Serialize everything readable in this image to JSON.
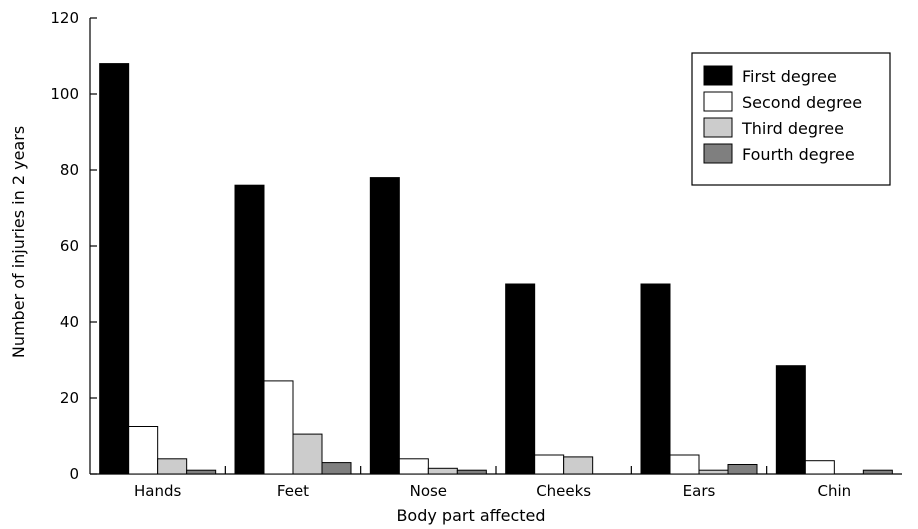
{
  "chart_data": {
    "type": "bar",
    "xlabel": "Body part affected",
    "ylabel": "Number of injuries in 2 years",
    "ylim": [
      0,
      120
    ],
    "yticks": [
      0,
      20,
      40,
      60,
      80,
      100,
      120
    ],
    "categories": [
      "Hands",
      "Feet",
      "Nose",
      "Cheeks",
      "Ears",
      "Chin"
    ],
    "series": [
      {
        "name": "First degree",
        "color": "#000000",
        "values": [
          108,
          76,
          78,
          50,
          50,
          28.5
        ]
      },
      {
        "name": "Second degree",
        "color": "#ffffff",
        "values": [
          12.5,
          24.5,
          4,
          5,
          5,
          3.5
        ]
      },
      {
        "name": "Third degree",
        "color": "#cccccc",
        "values": [
          4,
          10.5,
          1.5,
          4.5,
          1,
          0
        ]
      },
      {
        "name": "Fourth degree",
        "color": "#7f7f7f",
        "values": [
          1,
          3,
          1,
          0,
          2.5,
          1
        ]
      }
    ],
    "legend_position": "top-right",
    "grid": false
  }
}
